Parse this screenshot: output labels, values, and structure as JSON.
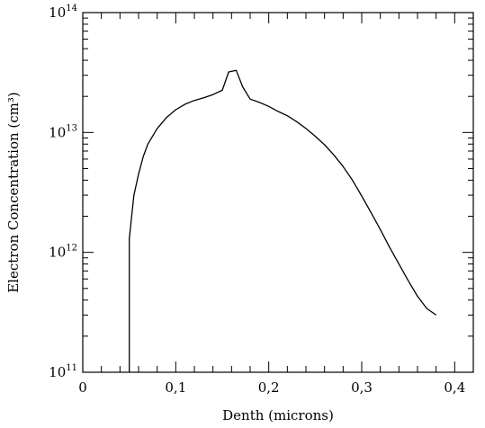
{
  "chart_data": {
    "type": "line",
    "title": "",
    "xlabel": "Denth (microns)",
    "ylabel": "Electron Concentration (cm³)",
    "xlim": [
      0,
      0.42
    ],
    "ylim": [
      100000000000.0,
      100000000000000.0
    ],
    "y_scale": "log",
    "grid": false,
    "x_ticks": [
      {
        "value": 0,
        "label": "0"
      },
      {
        "value": 0.1,
        "label": "0,1"
      },
      {
        "value": 0.2,
        "label": "0,2"
      },
      {
        "value": 0.3,
        "label": "0,3"
      },
      {
        "value": 0.4,
        "label": "0,4"
      }
    ],
    "y_ticks": [
      {
        "value": 100000000000.0,
        "base": "10",
        "exp": "11"
      },
      {
        "value": 1000000000000.0,
        "base": "10",
        "exp": "12"
      },
      {
        "value": 10000000000000.0,
        "base": "10",
        "exp": "13"
      },
      {
        "value": 100000000000000.0,
        "base": "10",
        "exp": "14"
      }
    ],
    "series": [
      {
        "color": "#000000",
        "x": [
          0.05,
          0.05,
          0.055,
          0.06,
          0.065,
          0.07,
          0.08,
          0.09,
          0.1,
          0.11,
          0.12,
          0.13,
          0.14,
          0.15,
          0.157,
          0.165,
          0.172,
          0.18,
          0.19,
          0.2,
          0.21,
          0.22,
          0.23,
          0.24,
          0.25,
          0.26,
          0.27,
          0.28,
          0.29,
          0.3,
          0.31,
          0.32,
          0.33,
          0.34,
          0.35,
          0.36,
          0.37,
          0.38
        ],
        "y": [
          100000000000.0,
          1300000000000.0,
          3000000000000.0,
          4500000000000.0,
          6300000000000.0,
          8000000000000.0,
          10800000000000.0,
          13300000000000.0,
          15500000000000.0,
          17200000000000.0,
          18500000000000.0,
          19500000000000.0,
          20700000000000.0,
          22500000000000.0,
          32000000000000.0,
          33000000000000.0,
          24000000000000.0,
          19000000000000.0,
          17800000000000.0,
          16500000000000.0,
          15000000000000.0,
          13800000000000.0,
          12300000000000.0,
          10800000000000.0,
          9300000000000.0,
          7900000000000.0,
          6500000000000.0,
          5200000000000.0,
          4000000000000.0,
          2950000000000.0,
          2150000000000.0,
          1550000000000.0,
          1100000000000.0,
          800000000000.0,
          580000000000.0,
          430000000000.0,
          340000000000.0,
          300000000000.0
        ]
      }
    ]
  }
}
